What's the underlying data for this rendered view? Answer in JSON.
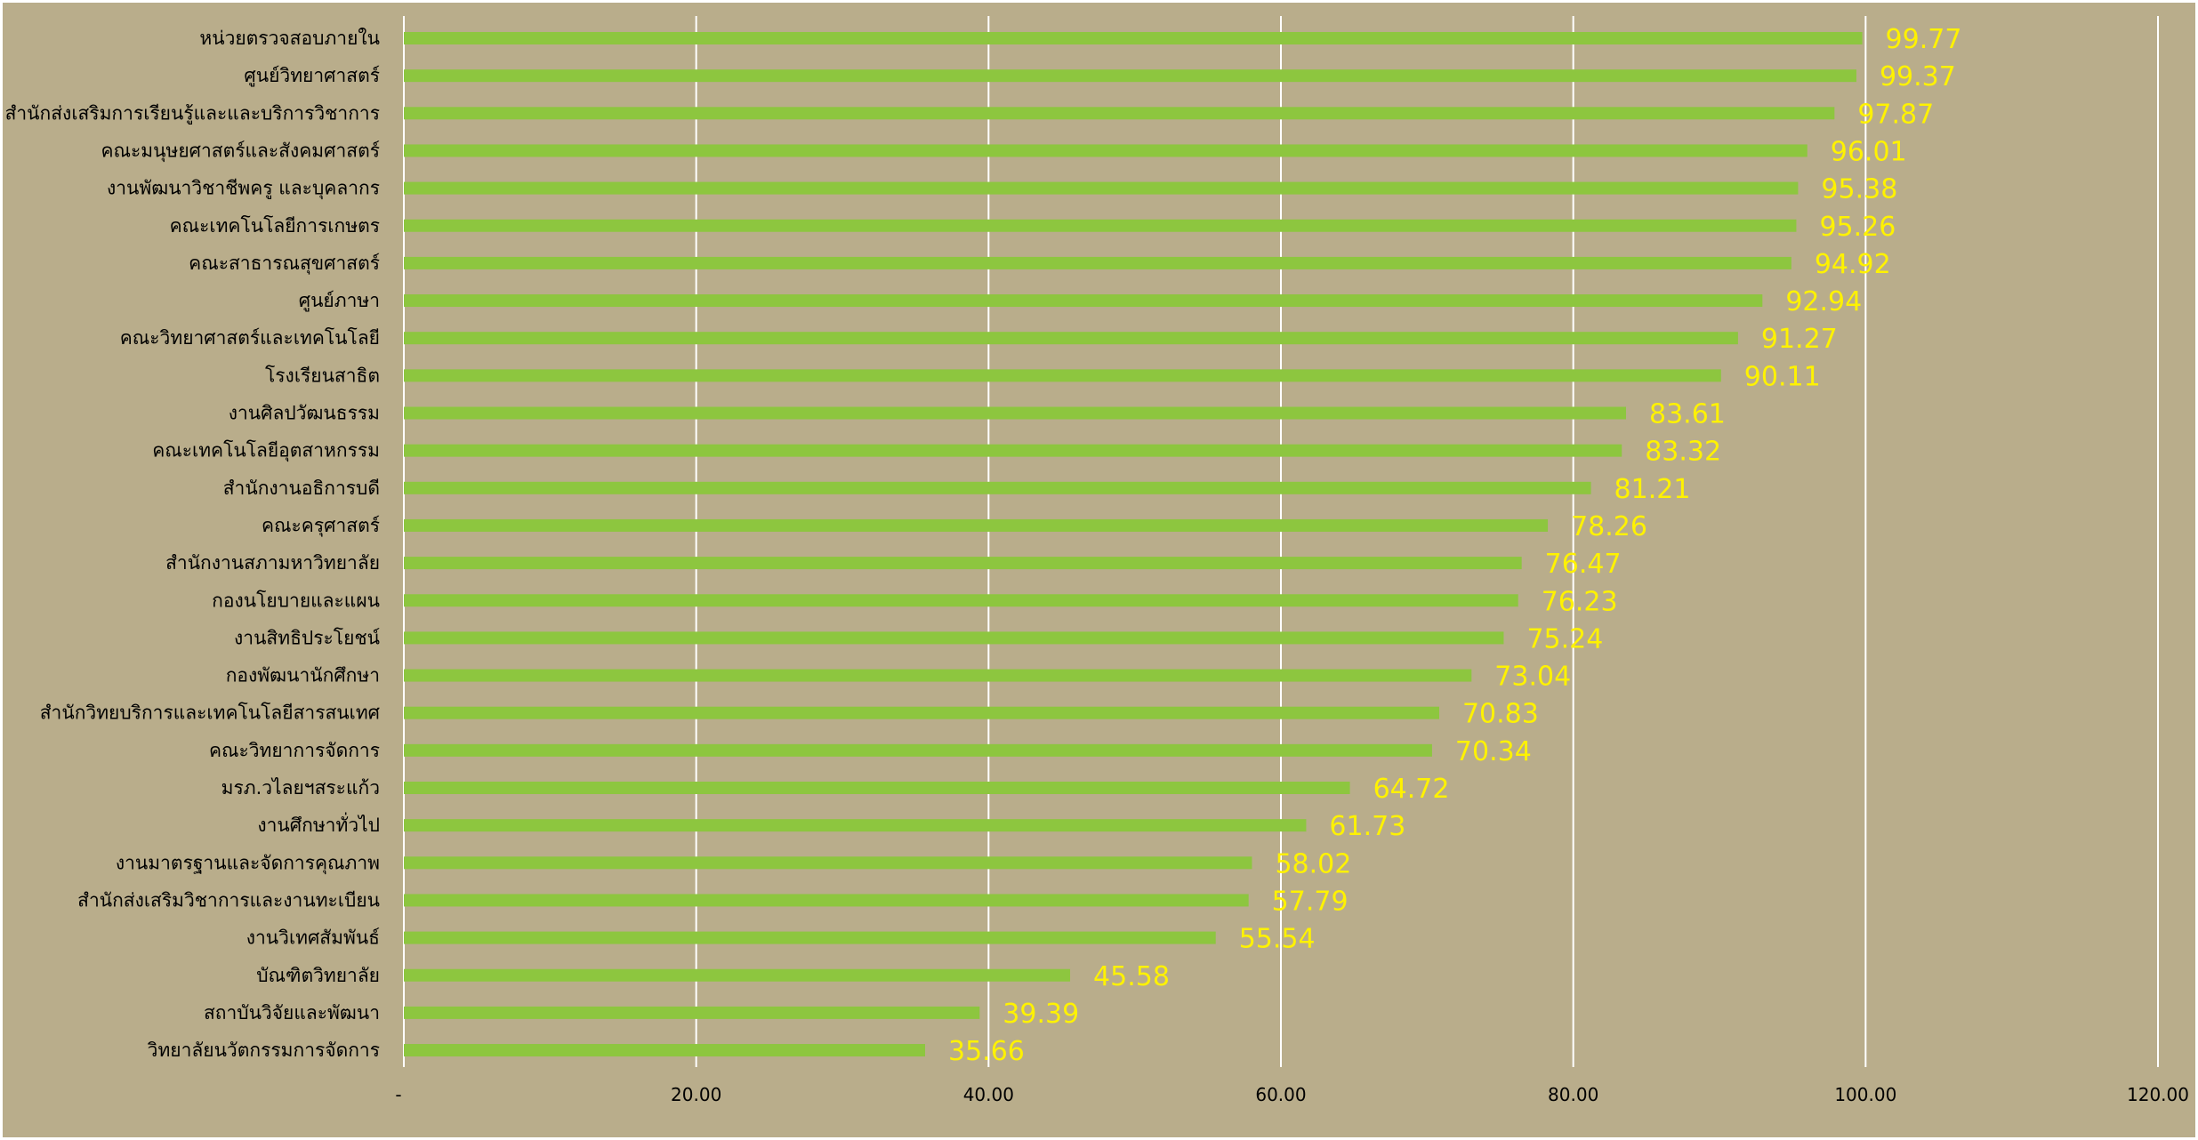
{
  "chart_data": {
    "type": "bar",
    "orientation": "horizontal",
    "title": "",
    "xlabel": "",
    "ylabel": "",
    "xlim": [
      0,
      120
    ],
    "x_ticks": [
      0,
      20,
      40,
      60,
      80,
      100,
      120
    ],
    "x_tick_labels": [
      "-",
      "20.00",
      "40.00",
      "60.00",
      "80.00",
      "100.00",
      "120.00"
    ],
    "grid": "vertical",
    "legend": "none",
    "colors": {
      "background": "#b9ad8b",
      "bar": "#8dc63f",
      "gridline": "#ffffff",
      "value_label": "#fff200",
      "text": "#000000"
    },
    "categories": [
      "หน่วยตรวจสอบภายใน",
      "ศูนย์วิทยาศาสตร์",
      "สำนักส่งเสริมการเรียนรู้และและบริการวิชาการ",
      "คณะมนุษยศาสตร์และสังคมศาสตร์",
      "งานพัฒนาวิชาชีพครู และบุคลากร",
      "คณะเทคโนโลยีการเกษตร",
      "คณะสาธารณสุขศาสตร์",
      "ศูนย์ภาษา",
      "คณะวิทยาศาสตร์และเทคโนโลยี",
      "โรงเรียนสาธิต",
      "งานศิลปวัฒนธรรม",
      "คณะเทคโนโลยีอุตสาหกรรม",
      "สำนักงานอธิการบดี",
      "คณะครุศาสตร์",
      "สำนักงานสภามหาวิทยาลัย",
      "กองนโยบายและแผน",
      "งานสิทธิประโยชน์",
      "กองพัฒนานักศึกษา",
      "สำนักวิทยบริการและเทคโนโลยีสารสนเทศ",
      "คณะวิทยาการจัดการ",
      "มรภ.วไลยฯสระแก้ว",
      "งานศึกษาทั่วไป",
      "งานมาตรฐานและจัดการคุณภาพ",
      "สำนักส่งเสริมวิชาการและงานทะเบียน",
      "งานวิเทศสัมพันธ์",
      "บัณฑิตวิทยาลัย",
      "สถาบันวิจัยและพัฒนา",
      "วิทยาลัยนวัตกรรมการจัดการ"
    ],
    "values": [
      99.77,
      99.37,
      97.87,
      96.01,
      95.38,
      95.26,
      94.92,
      92.94,
      91.27,
      90.11,
      83.61,
      83.32,
      81.21,
      78.26,
      76.47,
      76.23,
      75.24,
      73.04,
      70.83,
      70.34,
      64.72,
      61.73,
      58.02,
      57.79,
      55.54,
      45.58,
      39.39,
      35.66
    ],
    "value_labels": [
      "99.77",
      "99.37",
      "97.87",
      "96.01",
      "95.38",
      "95.26",
      "94.92",
      "92.94",
      "91.27",
      "90.11",
      "83.61",
      "83.32",
      "81.21",
      "78.26",
      "76.47",
      "76.23",
      "75.24",
      "73.04",
      "70.83",
      "70.34",
      "64.72",
      "61.73",
      "58.02",
      "57.79",
      "55.54",
      "45.58",
      "39.39",
      "35.66"
    ]
  }
}
